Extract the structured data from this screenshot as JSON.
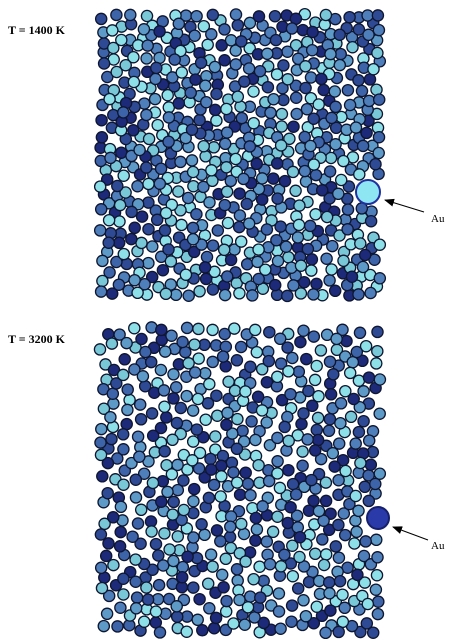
{
  "panels": [
    {
      "label": "T = 1400 K",
      "annotation": "Au"
    },
    {
      "label": "T = 3200 K",
      "annotation": "Au"
    }
  ]
}
